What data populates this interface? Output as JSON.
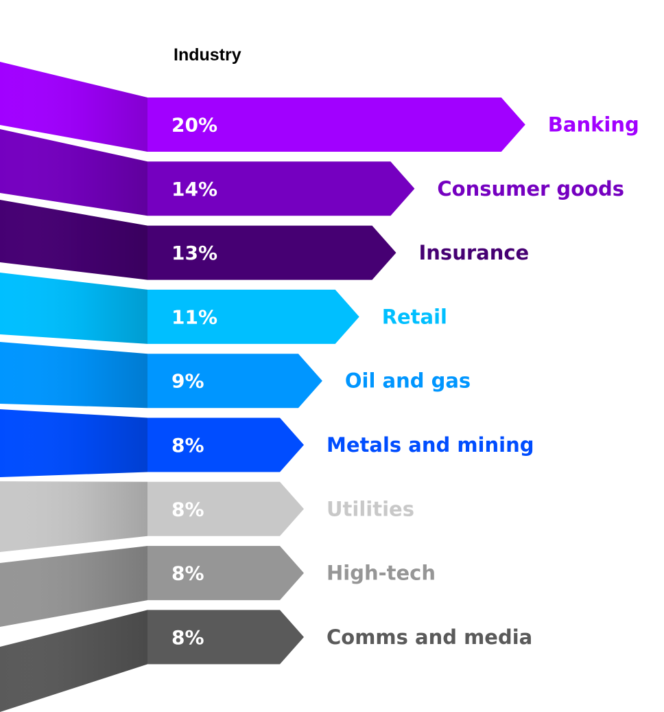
{
  "header": {
    "title": "Industry"
  },
  "chart_data": {
    "type": "bar",
    "title": "Industry",
    "categories": [
      "Banking",
      "Consumer goods",
      "Insurance",
      "Retail",
      "Oil and gas",
      "Metals and mining",
      "Utilities",
      "High-tech",
      "Comms and media"
    ],
    "values": [
      20,
      14,
      13,
      11,
      9,
      8,
      8,
      8,
      8
    ],
    "value_labels": [
      "20%",
      "14%",
      "13%",
      "11%",
      "9%",
      "8%",
      "8%",
      "8%",
      "8%"
    ],
    "unit": "%",
    "colors": [
      "#a100ff",
      "#7500c0",
      "#460073",
      "#00bfff",
      "#0096ff",
      "#004dff",
      "#c8c8c8",
      "#969696",
      "#5a5a5a"
    ],
    "label_colors": [
      "#a100ff",
      "#7500c0",
      "#460073",
      "#00bfff",
      "#0096ff",
      "#004dff",
      "#c8c8c8",
      "#969696",
      "#5a5a5a"
    ],
    "orientation": "horizontal",
    "grid": false,
    "legend": "none"
  }
}
